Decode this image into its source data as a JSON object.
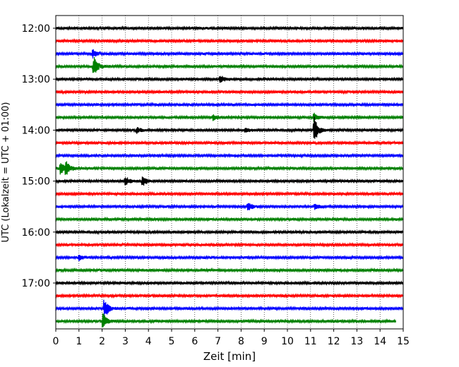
{
  "chart_data": {
    "type": "line",
    "title": "",
    "xlabel": "Zeit  [min]",
    "ylabel": "UTC (Lokalzeit = UTC + 01:00)",
    "xlim": [
      0,
      15
    ],
    "x_ticks": [
      "0",
      "1",
      "2",
      "3",
      "4",
      "5",
      "6",
      "7",
      "8",
      "9",
      "10",
      "11",
      "12",
      "13",
      "14",
      "15"
    ],
    "y_ticks": [
      "12:00",
      "13:00",
      "14:00",
      "15:00",
      "16:00",
      "17:00"
    ],
    "grid": "vertical dotted at each minute",
    "trace_colors": [
      "#000000",
      "#ff0000",
      "#0000ff",
      "#008000"
    ],
    "traces": [
      {
        "start": "12:00",
        "events": []
      },
      {
        "start": "12:15",
        "events": []
      },
      {
        "start": "12:30",
        "events": [
          {
            "t": 1.6,
            "amp": 0.45
          }
        ]
      },
      {
        "start": "12:45",
        "events": [
          {
            "t": 1.65,
            "amp": 1.3
          }
        ]
      },
      {
        "start": "13:00",
        "events": [
          {
            "t": 7.1,
            "amp": 0.5
          }
        ]
      },
      {
        "start": "13:15",
        "events": []
      },
      {
        "start": "13:30",
        "events": []
      },
      {
        "start": "13:45",
        "events": [
          {
            "t": 11.15,
            "amp": 0.5
          },
          {
            "t": 6.8,
            "amp": 0.3
          }
        ]
      },
      {
        "start": "14:00",
        "events": [
          {
            "t": 11.15,
            "amp": 1.6
          },
          {
            "t": 3.5,
            "amp": 0.3
          },
          {
            "t": 8.2,
            "amp": 0.25
          }
        ]
      },
      {
        "start": "14:15",
        "events": []
      },
      {
        "start": "14:30",
        "events": []
      },
      {
        "start": "14:45",
        "events": [
          {
            "t": 0.2,
            "amp": 0.8
          },
          {
            "t": 0.45,
            "amp": 0.8
          }
        ]
      },
      {
        "start": "15:00",
        "events": [
          {
            "t": 3.0,
            "amp": 0.5
          },
          {
            "t": 3.75,
            "amp": 0.65
          }
        ]
      },
      {
        "start": "15:15",
        "events": []
      },
      {
        "start": "15:30",
        "events": [
          {
            "t": 8.3,
            "amp": 0.6
          },
          {
            "t": 11.2,
            "amp": 0.3
          }
        ]
      },
      {
        "start": "15:45",
        "events": []
      },
      {
        "start": "16:00",
        "events": []
      },
      {
        "start": "16:15",
        "events": []
      },
      {
        "start": "16:30",
        "events": [
          {
            "t": 1.0,
            "amp": 0.3
          }
        ]
      },
      {
        "start": "16:45",
        "events": []
      },
      {
        "start": "17:00",
        "events": []
      },
      {
        "start": "17:15",
        "events": []
      },
      {
        "start": "17:30",
        "events": [
          {
            "t": 2.1,
            "amp": 1.3
          }
        ]
      },
      {
        "start": "17:45",
        "events": [
          {
            "t": 2.05,
            "amp": 0.9
          }
        ]
      }
    ]
  }
}
